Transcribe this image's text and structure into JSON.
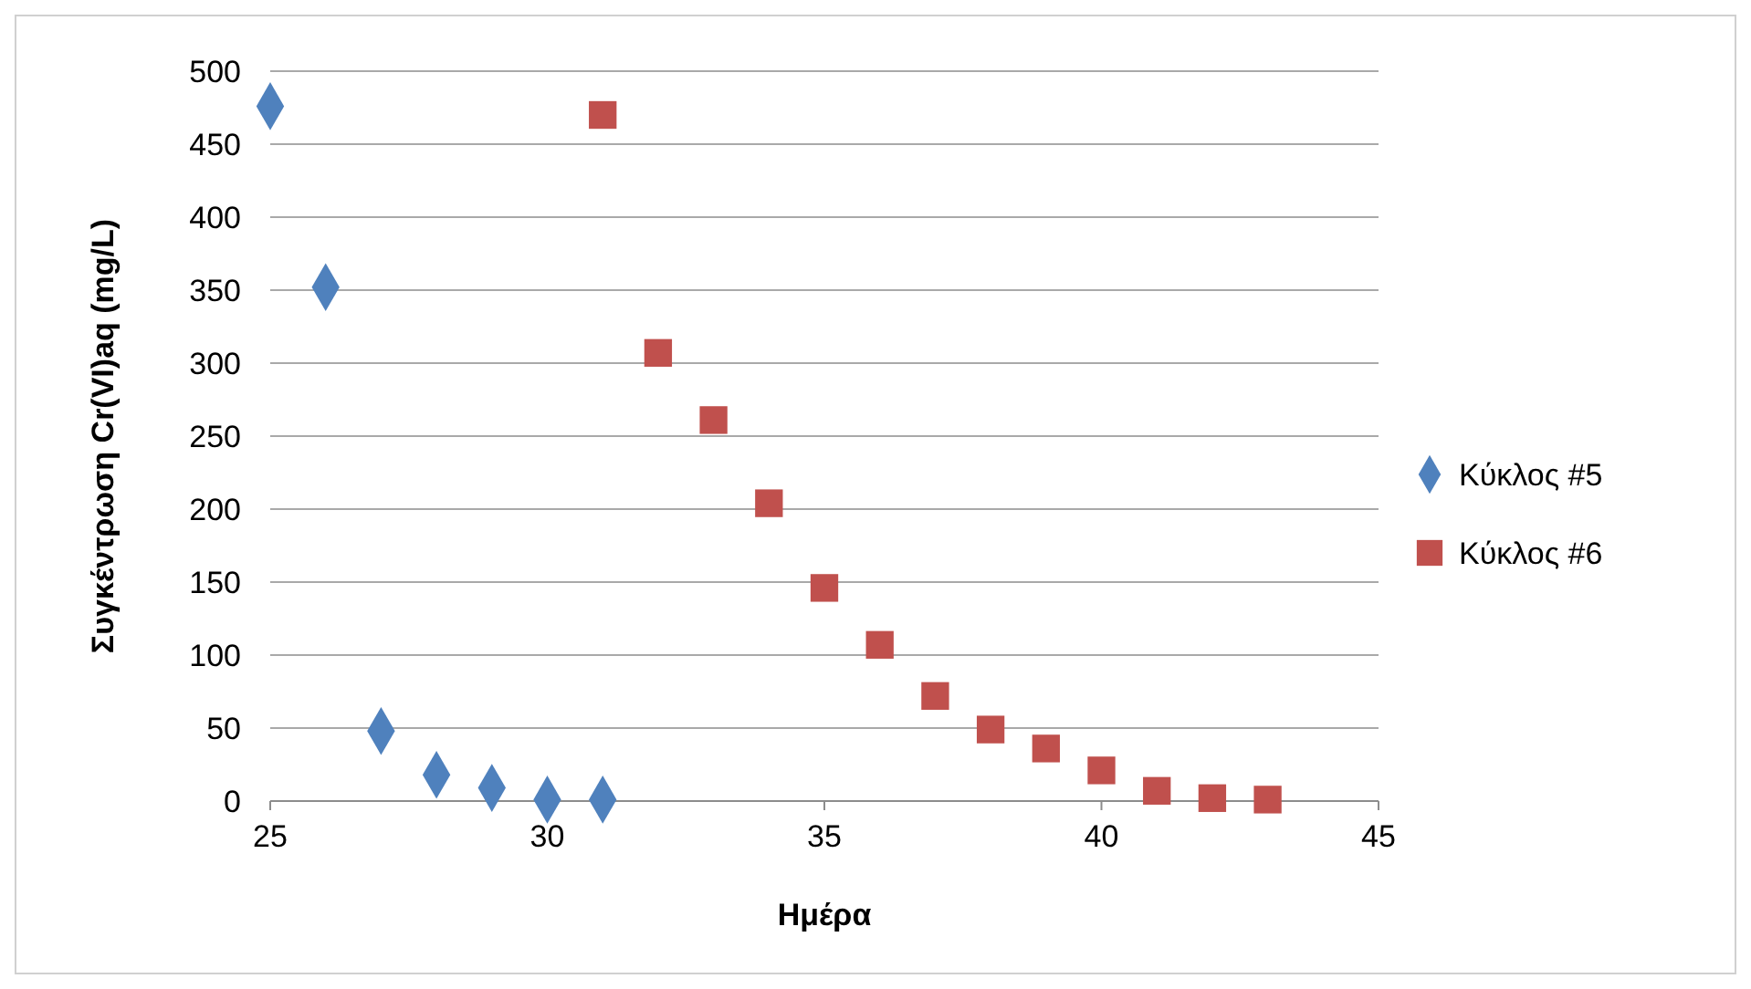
{
  "chart_data": {
    "type": "scatter",
    "xlabel": "Ημέρα",
    "ylabel": "Συγκέντρωση Cr(VI)aq (mg/L)",
    "xlim": [
      25,
      45
    ],
    "xticks": [
      25,
      30,
      35,
      40,
      45
    ],
    "ylim": [
      0,
      500
    ],
    "yticks": [
      0,
      50,
      100,
      150,
      200,
      250,
      300,
      350,
      400,
      450,
      500
    ],
    "grid": "y",
    "legend": "right",
    "series": [
      {
        "name": "Κύκλος #5",
        "color": "#4f81bd",
        "marker": "diamond",
        "x": [
          25,
          26,
          27,
          28,
          29,
          30,
          31
        ],
        "values": [
          476,
          352,
          48,
          18,
          9,
          1,
          1
        ]
      },
      {
        "name": "Κύκλος #6",
        "color": "#c0504d",
        "marker": "square",
        "x": [
          31,
          32,
          33,
          34,
          35,
          36,
          37,
          38,
          39,
          40,
          41,
          42,
          43
        ],
        "values": [
          470,
          307,
          261,
          204,
          146,
          107,
          72,
          49,
          36,
          21,
          7,
          2,
          1
        ]
      }
    ]
  }
}
